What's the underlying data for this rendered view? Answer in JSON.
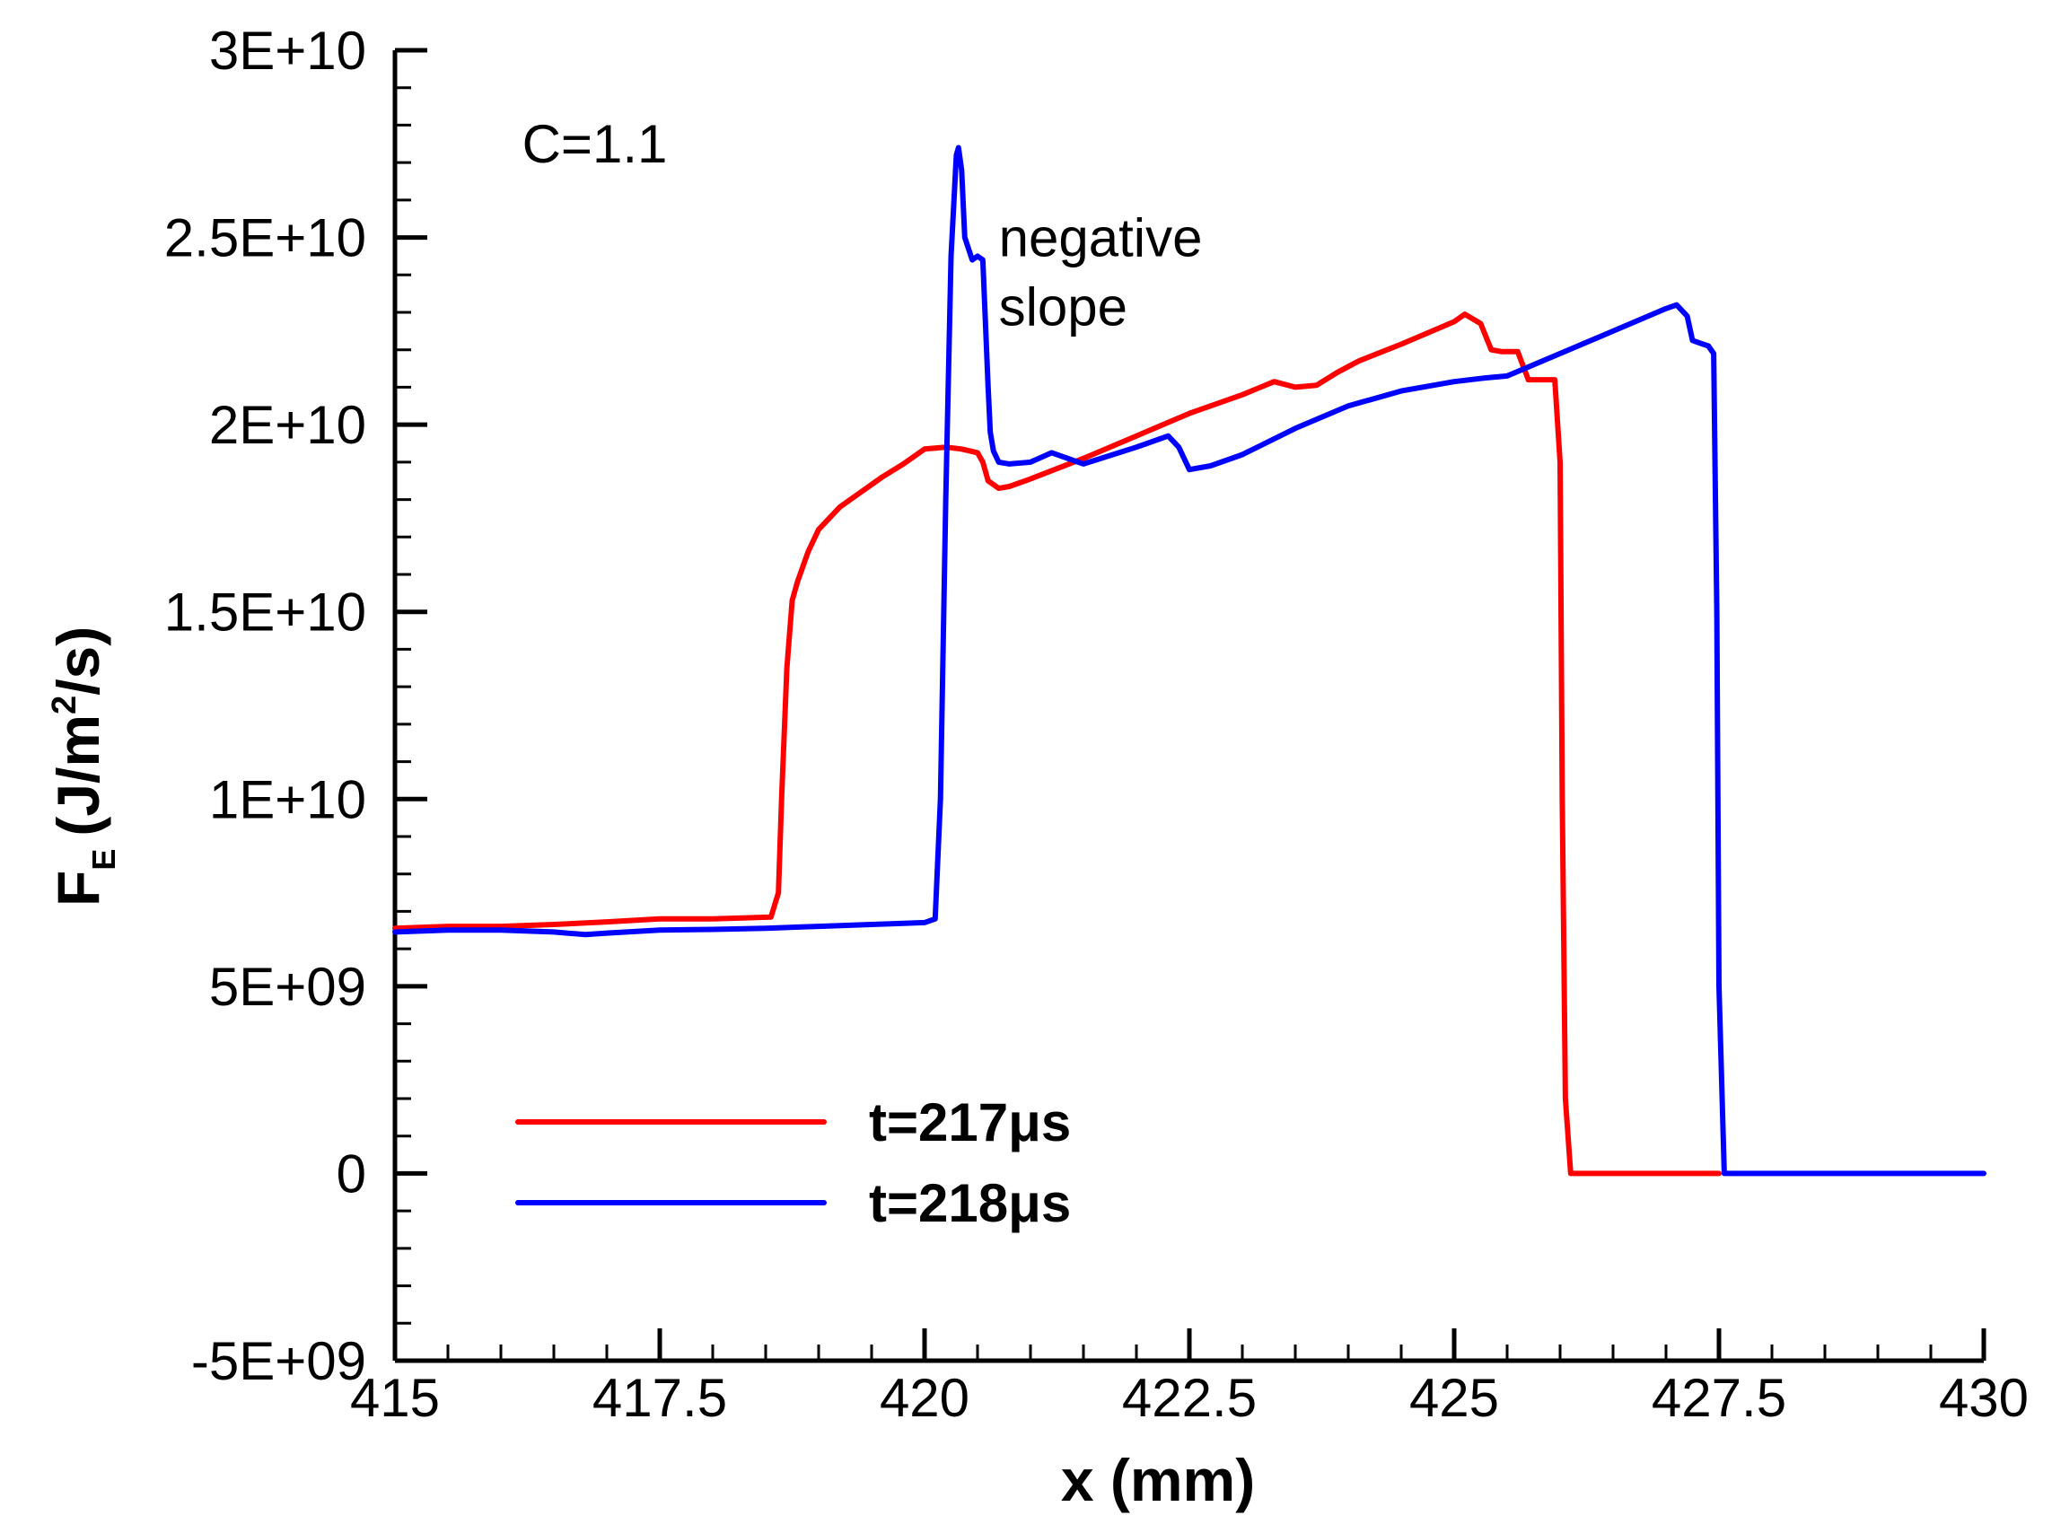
{
  "chart_data": {
    "type": "line",
    "xlabel": "x (mm)",
    "ylabel": {
      "main": "F",
      "sub": "E",
      "unit_open": "(J/m",
      "unit_sup": "2",
      "unit_close": "/s)"
    },
    "xlim": [
      415,
      430
    ],
    "ylim": [
      -5000000000,
      30000000000
    ],
    "x_ticks": [
      {
        "value": 415,
        "label": "415"
      },
      {
        "value": 417.5,
        "label": "417.5"
      },
      {
        "value": 420,
        "label": "420"
      },
      {
        "value": 422.5,
        "label": "422.5"
      },
      {
        "value": 425,
        "label": "425"
      },
      {
        "value": 427.5,
        "label": "427.5"
      },
      {
        "value": 430,
        "label": "430"
      }
    ],
    "y_ticks": [
      {
        "value": -5000000000,
        "label": "-5E+09"
      },
      {
        "value": 0,
        "label": "0"
      },
      {
        "value": 5000000000,
        "label": "5E+09"
      },
      {
        "value": 10000000000,
        "label": "1E+10"
      },
      {
        "value": 15000000000,
        "label": "1.5E+10"
      },
      {
        "value": 20000000000,
        "label": "2E+10"
      },
      {
        "value": 25000000000,
        "label": "2.5E+10"
      },
      {
        "value": 30000000000,
        "label": "3E+10"
      }
    ],
    "x_minor_step": 0.5,
    "y_minor_step": 1000000000,
    "annotations": [
      {
        "text": "C=1.1",
        "x": 416.2,
        "y": 27000000000
      },
      {
        "text": "negative",
        "x": 420.7,
        "y": 24500000000
      },
      {
        "text": "slope",
        "x": 420.7,
        "y": 22650000000
      }
    ],
    "legend": {
      "placement": "bottom-center",
      "entries": [
        {
          "label": "t=217μs",
          "color": "#ff0000"
        },
        {
          "label": "t=218μs",
          "color": "#0000ff"
        }
      ]
    },
    "series": [
      {
        "name": "t=217μs",
        "color": "#ff0000",
        "x": [
          415,
          415.5,
          416,
          416.5,
          417,
          417.5,
          418,
          418.35,
          418.55,
          418.62,
          418.65,
          418.7,
          418.75,
          418.8,
          418.9,
          419,
          419.2,
          419.4,
          419.6,
          419.8,
          420,
          420.2,
          420.35,
          420.5,
          420.55,
          420.6,
          420.7,
          420.8,
          421,
          421.5,
          422,
          422.5,
          423,
          423.3,
          423.5,
          423.7,
          423.9,
          424.1,
          424.5,
          425,
          425.1,
          425.25,
          425.35,
          425.45,
          425.6,
          425.7,
          425.8,
          425.95,
          426.0,
          426.02,
          426.05,
          426.1,
          426.2,
          427.5
        ],
        "y": [
          6550000000,
          6600000000,
          6600000000,
          6650000000,
          6720000000,
          6800000000,
          6800000000,
          6830000000,
          6850000000,
          7500000000,
          10000000000,
          13500000000,
          15300000000,
          15800000000,
          16600000000,
          17200000000,
          17800000000,
          18200000000,
          18600000000,
          18950000000,
          19350000000,
          19400000000,
          19350000000,
          19250000000,
          19000000000,
          18500000000,
          18300000000,
          18350000000,
          18550000000,
          19100000000,
          19700000000,
          20300000000,
          20800000000,
          21150000000,
          21000000000,
          21050000000,
          21400000000,
          21700000000,
          22150000000,
          22750000000,
          22950000000,
          22700000000,
          22000000000,
          21950000000,
          21950000000,
          21200000000,
          21200000000,
          21200000000,
          19000000000,
          10000000000,
          2000000000,
          0,
          0,
          0
        ]
      },
      {
        "name": "t=218μs",
        "color": "#0000ff",
        "x": [
          415,
          415.5,
          416,
          416.5,
          416.8,
          417,
          417.5,
          418,
          418.5,
          419,
          419.5,
          420,
          420.1,
          420.15,
          420.2,
          420.25,
          420.3,
          420.32,
          420.35,
          420.38,
          420.45,
          420.5,
          420.55,
          420.6,
          420.62,
          420.65,
          420.7,
          420.8,
          421,
          421.2,
          421.5,
          422,
          422.3,
          422.4,
          422.5,
          422.7,
          423,
          423.5,
          424,
          424.5,
          425,
          425.3,
          425.5,
          426,
          426.5,
          427,
          427.1,
          427.2,
          427.25,
          427.3,
          427.4,
          427.45,
          427.48,
          427.5,
          427.55,
          428,
          429,
          430
        ],
        "y": [
          6450000000,
          6500000000,
          6500000000,
          6450000000,
          6380000000,
          6420000000,
          6500000000,
          6520000000,
          6550000000,
          6600000000,
          6650000000,
          6700000000,
          6800000000,
          10000000000,
          18000000000,
          24500000000,
          27200000000,
          27400000000,
          26800000000,
          25000000000,
          24400000000,
          24500000000,
          24400000000,
          21000000000,
          19800000000,
          19300000000,
          19000000000,
          18950000000,
          19000000000,
          19250000000,
          18950000000,
          19400000000,
          19700000000,
          19400000000,
          18800000000,
          18900000000,
          19200000000,
          19900000000,
          20500000000,
          20900000000,
          21150000000,
          21250000000,
          21300000000,
          21900000000,
          22500000000,
          23100000000,
          23200000000,
          22900000000,
          22250000000,
          22200000000,
          22100000000,
          21900000000,
          15000000000,
          5000000000,
          0,
          0,
          0,
          0
        ]
      }
    ]
  }
}
